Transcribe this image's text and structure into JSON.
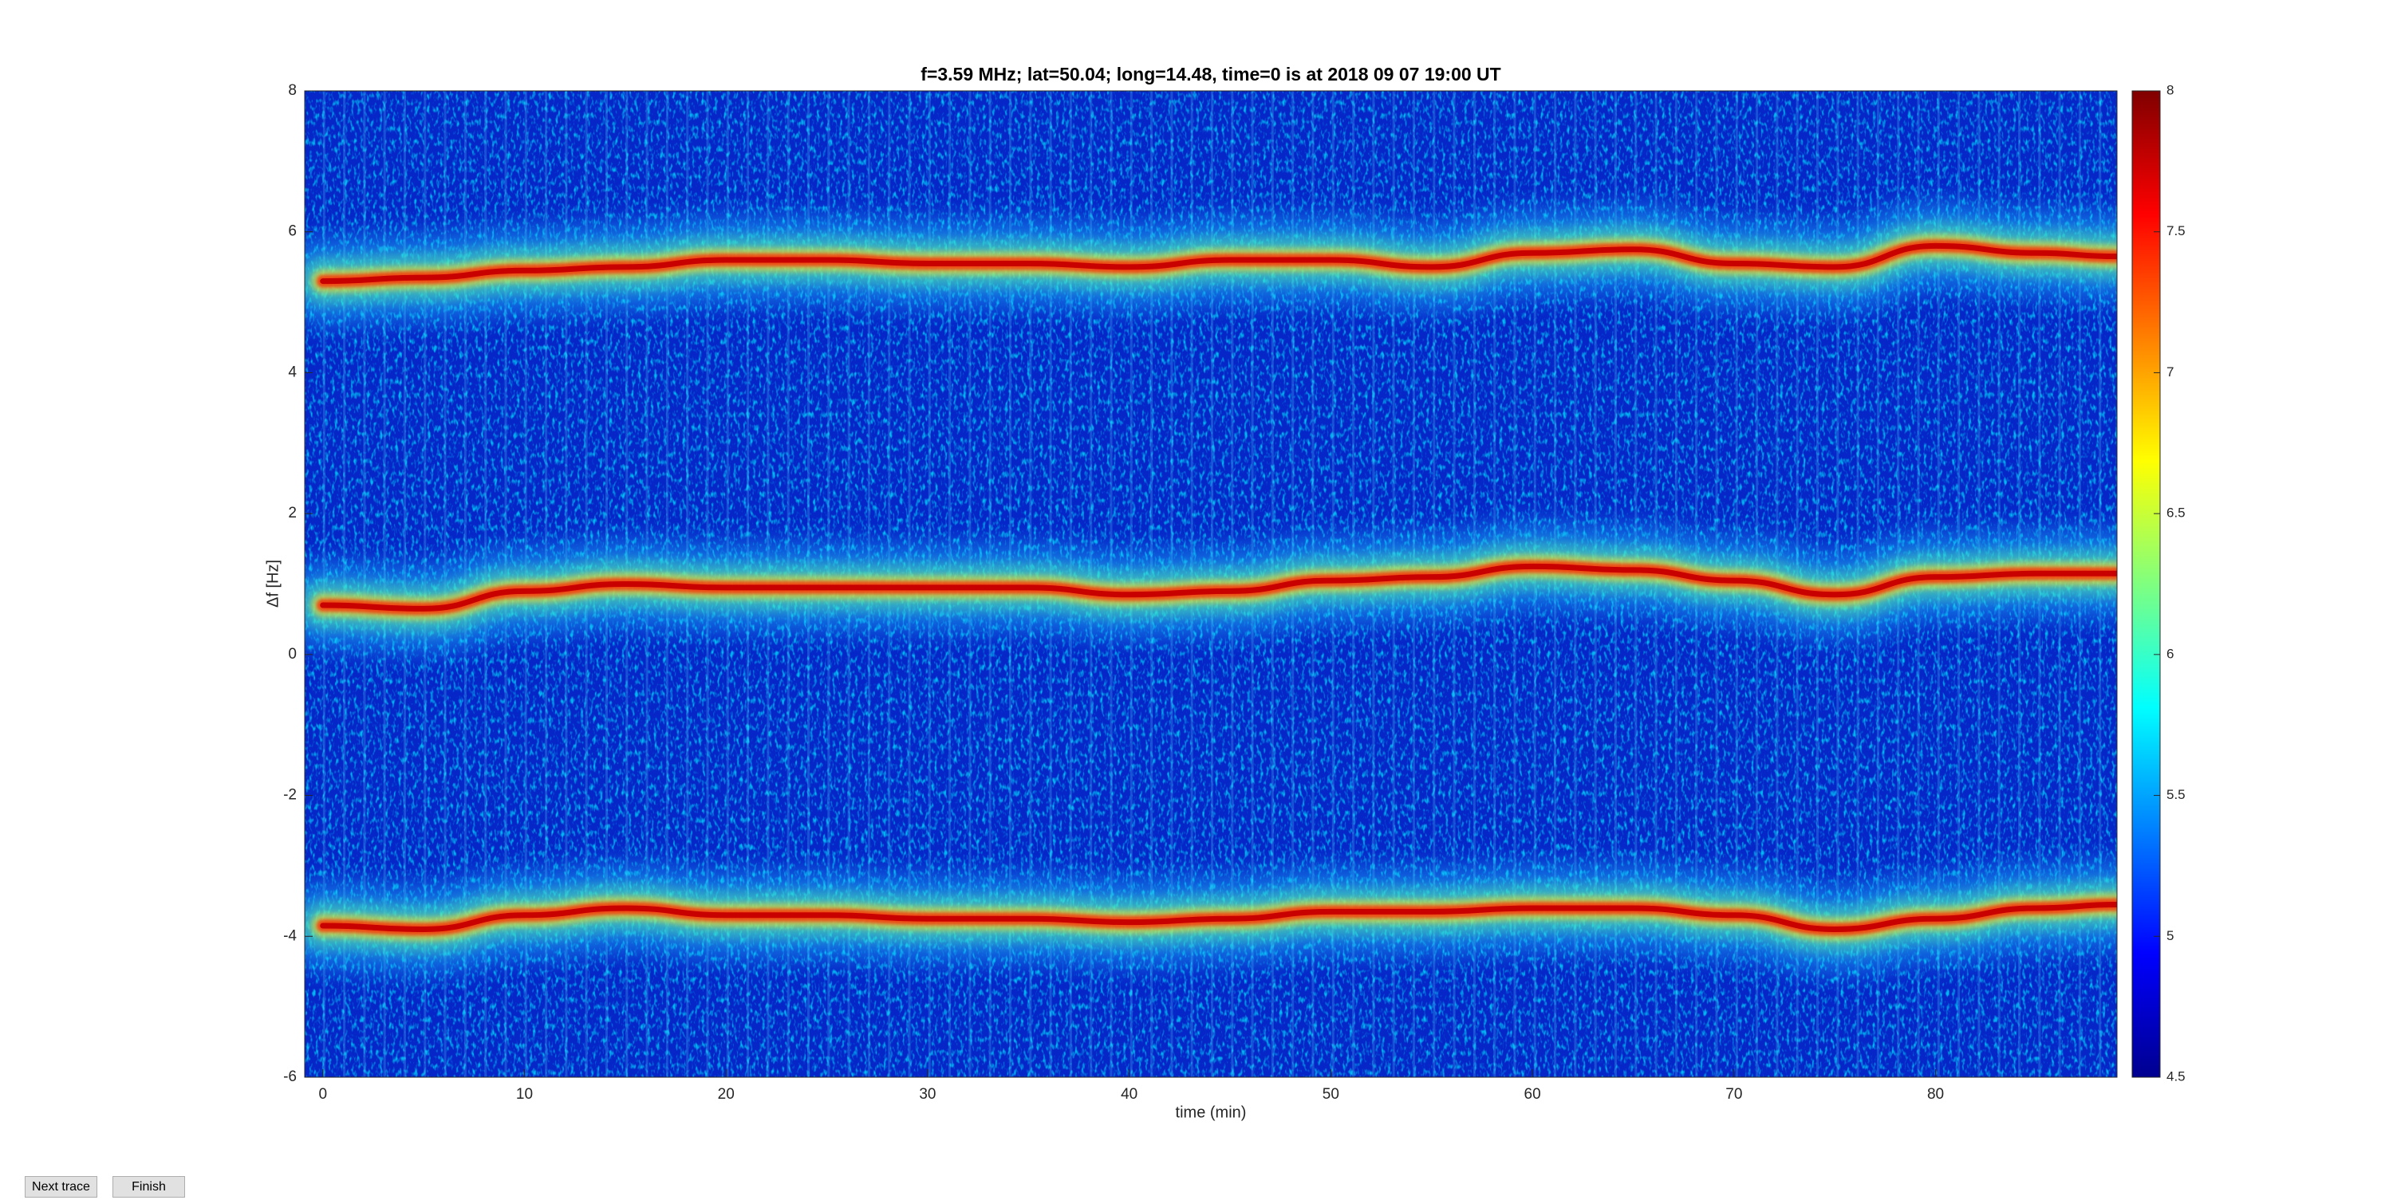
{
  "chart_data": {
    "type": "spectrogram",
    "title": "f=3.59 MHz;  lat=50.04; long=14.48, time=0 is at 2018 09 07 19:00 UT",
    "xlabel": "time (min)",
    "ylabel": "Δf [Hz]",
    "xlim": [
      -0.9,
      89
    ],
    "ylim": [
      -6,
      8
    ],
    "xticks": [
      0,
      10,
      20,
      30,
      40,
      50,
      60,
      70,
      80
    ],
    "yticks": [
      -6,
      -4,
      -2,
      0,
      2,
      4,
      6,
      8
    ],
    "clim": [
      4.5,
      8
    ],
    "cticks": [
      4.5,
      5,
      5.5,
      6,
      6.5,
      7,
      7.5,
      8
    ],
    "colormap": "jet",
    "x": [
      0,
      5,
      10,
      15,
      20,
      25,
      30,
      35,
      40,
      45,
      50,
      55,
      60,
      65,
      70,
      75,
      80,
      85,
      89
    ],
    "series": [
      {
        "color": "#c80000",
        "values": [
          5.3,
          5.35,
          5.45,
          5.5,
          5.6,
          5.6,
          5.55,
          5.55,
          5.5,
          5.6,
          5.6,
          5.5,
          5.7,
          5.75,
          5.55,
          5.5,
          5.8,
          5.7,
          5.65
        ]
      },
      {
        "color": "#c80000",
        "values": [
          0.7,
          0.65,
          0.9,
          1.0,
          0.95,
          0.95,
          0.95,
          0.95,
          0.85,
          0.9,
          1.05,
          1.1,
          1.25,
          1.2,
          1.05,
          0.85,
          1.1,
          1.15,
          1.15
        ]
      },
      {
        "color": "#c80000",
        "values": [
          -3.85,
          -3.9,
          -3.7,
          -3.6,
          -3.7,
          -3.7,
          -3.75,
          -3.75,
          -3.8,
          -3.75,
          -3.65,
          -3.65,
          -3.6,
          -3.6,
          -3.7,
          -3.9,
          -3.75,
          -3.6,
          -3.55
        ]
      }
    ]
  },
  "buttons": [
    "Next trace",
    "Finish"
  ]
}
